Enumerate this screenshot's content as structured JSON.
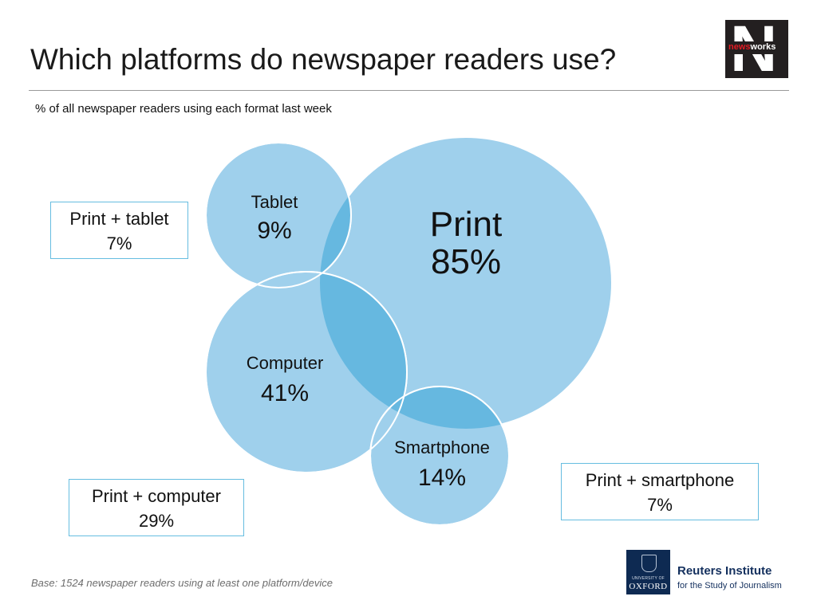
{
  "header": {
    "title": "Which platforms do newspaper readers use?",
    "subtitle": "% of all newspaper readers using each format last week"
  },
  "brand": {
    "newsworks_prefix": "news",
    "newsworks_suffix": "works",
    "newsworks_letter": "N",
    "oxford_small": "UNIVERSITY OF",
    "oxford_name": "OXFORD",
    "reuters_title": "Reuters Institute",
    "reuters_sub": "for the Study of Journalism"
  },
  "colors": {
    "circle_fill": "#9fd0ec",
    "overlap_fill": "#66b8e0",
    "box_border": "#66bde0",
    "logo_dark": "#231f20",
    "oxford_blue": "#0e2a52"
  },
  "chart_data": {
    "type": "venn",
    "title": "Which platforms do newspaper readers use?",
    "subtitle": "% of all newspaper readers using each format last week",
    "sets": [
      {
        "name": "Print",
        "label": "Print",
        "value_label": "85%",
        "value": 85
      },
      {
        "name": "Tablet",
        "label": "Tablet",
        "value_label": "9%",
        "value": 9
      },
      {
        "name": "Computer",
        "label": "Computer",
        "value_label": "41%",
        "value": 41
      },
      {
        "name": "Smartphone",
        "label": "Smartphone",
        "value_label": "14%",
        "value": 14
      }
    ],
    "overlaps": [
      {
        "sets": [
          "Print",
          "Tablet"
        ],
        "label": "Print + tablet",
        "value_label": "7%",
        "value": 7
      },
      {
        "sets": [
          "Print",
          "Computer"
        ],
        "label": "Print + computer",
        "value_label": "29%",
        "value": 29
      },
      {
        "sets": [
          "Print",
          "Smartphone"
        ],
        "label": "Print + smartphone",
        "value_label": "7%",
        "value": 7
      }
    ]
  },
  "footnote": "Base: 1524 newspaper readers using at least one platform/device"
}
